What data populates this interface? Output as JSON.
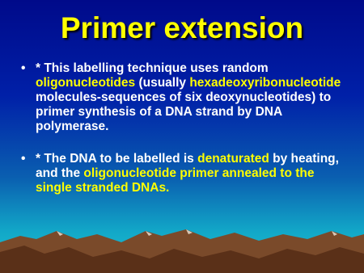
{
  "slide": {
    "title": "Primer extension",
    "bullets": [
      {
        "runs": [
          {
            "text": "* This labelling technique uses random ",
            "highlight": false
          },
          {
            "text": "oligonucleotides",
            "highlight": true
          },
          {
            "text": " (usually ",
            "highlight": false
          },
          {
            "text": "hexadeoxyribonucleotide",
            "highlight": true
          },
          {
            "text": " molecules-sequences of six deoxynucleotides) to primer synthesis of a DNA strand by DNA polymerase.",
            "highlight": false
          }
        ]
      },
      {
        "runs": [
          {
            "text": "* The DNA to be labelled is ",
            "highlight": false
          },
          {
            "text": "denaturated",
            "highlight": true
          },
          {
            "text": " by heating, and the ",
            "highlight": false
          },
          {
            "text": "oligonucleotide primer annealed to the single stranded DNAs.",
            "highlight": true
          }
        ]
      }
    ]
  }
}
